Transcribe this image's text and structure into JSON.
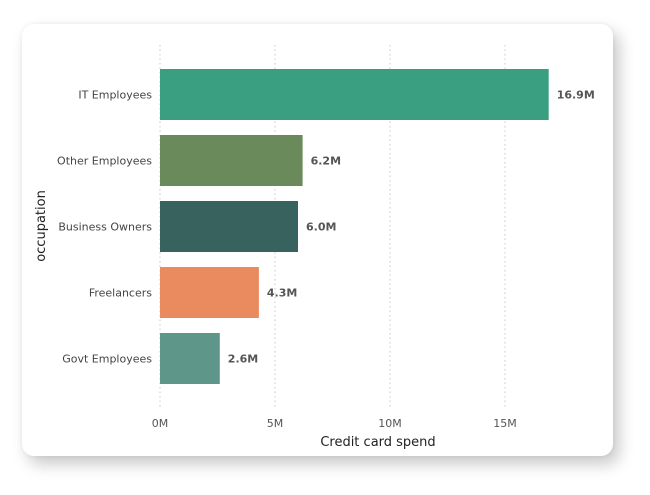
{
  "chart_data": {
    "type": "bar",
    "orientation": "horizontal",
    "xlabel": "Credit card spend",
    "ylabel": "occupation",
    "xlim": [
      0,
      17000000
    ],
    "x_ticks": [
      {
        "value": 0,
        "label": "0M"
      },
      {
        "value": 5000000,
        "label": "5M"
      },
      {
        "value": 10000000,
        "label": "10M"
      },
      {
        "value": 15000000,
        "label": "15M"
      }
    ],
    "grid": "vertical dotted",
    "categories": [
      "IT Employees",
      "Other Employees",
      "Business Owners",
      "Freelancers",
      "Govt Employees"
    ],
    "values": [
      16900000,
      6200000,
      6000000,
      4300000,
      2600000
    ],
    "data_labels": [
      "16.9M",
      "6.2M",
      "6.0M",
      "4.3M",
      "2.6M"
    ],
    "colors": [
      "#3a9f80",
      "#6a8a5c",
      "#37625e",
      "#ea8a5f",
      "#5e978a"
    ]
  }
}
